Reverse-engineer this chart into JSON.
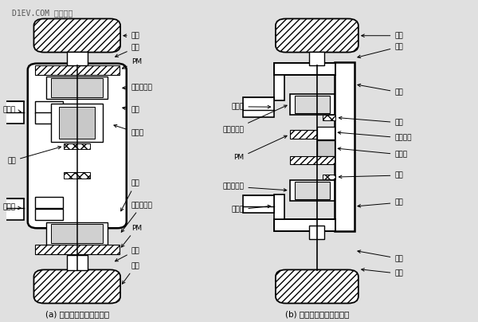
{
  "title": "D1EV.COM 第一电动",
  "subtitle_a": "(a) 直接驱动的外转子电机",
  "subtitle_b": "(b) 减速驱动的内转子电机",
  "bg_color": "#e0e0e0",
  "line_color": "#000000"
}
